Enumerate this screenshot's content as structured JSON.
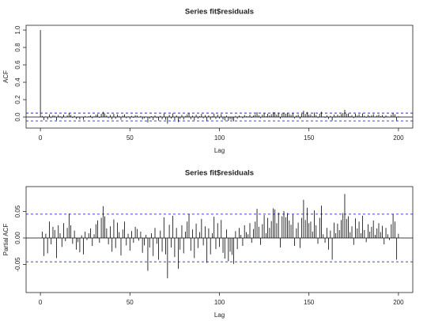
{
  "chart_data": [
    {
      "type": "acf",
      "title": "Series  fit$residuals",
      "xlabel": "Lag",
      "ylabel": "ACF",
      "x": [
        0,
        1,
        2,
        3,
        4,
        5,
        6,
        7,
        8,
        9,
        10,
        11,
        12,
        13,
        14,
        15,
        16,
        17,
        18,
        19,
        20,
        21,
        22,
        23,
        24,
        25,
        26,
        27,
        28,
        29,
        30,
        31,
        32,
        33,
        34,
        35,
        36,
        37,
        38,
        39,
        40,
        41,
        42,
        43,
        44,
        45,
        46,
        47,
        48,
        49,
        50,
        51,
        52,
        53,
        54,
        55,
        56,
        57,
        58,
        59,
        60,
        61,
        62,
        63,
        64,
        65,
        66,
        67,
        68,
        69,
        70,
        71,
        72,
        73,
        74,
        75,
        76,
        77,
        78,
        79,
        80,
        81,
        82,
        83,
        84,
        85,
        86,
        87,
        88,
        89,
        90,
        91,
        92,
        93,
        94,
        95,
        96,
        97,
        98,
        99,
        100,
        101,
        102,
        103,
        104,
        105,
        106,
        107,
        108,
        109,
        110,
        111,
        112,
        113,
        114,
        115,
        116,
        117,
        118,
        119,
        120,
        121,
        122,
        123,
        124,
        125,
        126,
        127,
        128,
        129,
        130,
        131,
        132,
        133,
        134,
        135,
        136,
        137,
        138,
        139,
        140,
        141,
        142,
        143,
        144,
        145,
        146,
        147,
        148,
        149,
        150,
        151,
        152,
        153,
        154,
        155,
        156,
        157,
        158,
        159,
        160,
        161,
        162,
        163,
        164,
        165,
        166,
        167,
        168,
        169,
        170,
        171,
        172,
        173,
        174,
        175,
        176,
        177,
        178,
        179,
        180,
        181,
        182,
        183,
        184,
        185,
        186,
        187,
        188,
        189,
        190,
        191,
        192,
        193,
        194,
        195,
        196,
        197,
        198,
        199,
        200
      ],
      "values": [
        1,
        0.012,
        -0.034,
        0.008,
        -0.029,
        0.031,
        -0.012,
        0.021,
        0.015,
        -0.038,
        0.024,
        0.009,
        -0.017,
        0.028,
        -0.006,
        0.019,
        0.046,
        0.024,
        -0.011,
        0.014,
        -0.022,
        -0.008,
        -0.027,
        0.005,
        -0.031,
        0.012,
        -0.004,
        0.009,
        0.018,
        -0.015,
        0.007,
        0.026,
        0.033,
        -0.009,
        0.038,
        0.06,
        0.041,
        0.018,
        -0.012,
        0.022,
        -0.026,
        0.035,
        -0.019,
        0.029,
        0.011,
        -0.033,
        0.016,
        0.031,
        -0.014,
        0.008,
        -0.024,
        0.013,
        -0.009,
        0.021,
        0.017,
        -0.005,
        0.012,
        -0.028,
        -0.014,
        0.006,
        -0.062,
        -0.018,
        0.009,
        -0.034,
        0.019,
        -0.011,
        -0.041,
        0.014,
        -0.026,
        0.039,
        -0.031,
        -0.076,
        0.025,
        -0.018,
        0.042,
        -0.036,
        0.019,
        -0.058,
        -0.022,
        0.024,
        -0.029,
        0.012,
        0.031,
        0.045,
        -0.024,
        0.016,
        -0.038,
        0.027,
        -0.019,
        0.011,
        0.036,
        -0.014,
        0.022,
        -0.047,
        0.018,
        -0.031,
        0.009,
        0.04,
        -0.021,
        0.028,
        -0.017,
        0.034,
        -0.028,
        -0.039,
        0.016,
        -0.044,
        -0.026,
        -0.032,
        -0.049,
        0.013,
        -0.021,
        0.019,
        0.006,
        -0.015,
        0.024,
        0.011,
        0.007,
        0.028,
        -0.009,
        0.017,
        0.031,
        0.055,
        0.021,
        -0.013,
        0.026,
        0.043,
        0.009,
        0.038,
        0.019,
        0.032,
        0.056,
        0.054,
        0.028,
        0.048,
        -0.018,
        0.041,
        0.051,
        0.039,
        0.047,
        0.033,
        0.025,
        0.044,
        -0.015,
        0.018,
        0.029,
        -0.019,
        0.038,
        0.072,
        0.034,
        0.057,
        0.028,
        0.031,
        0.012,
        0.052,
        0.024,
        -0.011,
        0.038,
        0.061,
        0.007,
        -0.009,
        0.019,
        -0.022,
        0.014,
        -0.041,
        0.029,
        0.009,
        0.027,
        0.015,
        0.034,
        0.047,
        0.083,
        0.036,
        0.041,
        0.011,
        0.022,
        -0.013,
        0.037,
        0.018,
        0.031,
        0.009,
        0.042,
        0.015,
        -0.008,
        0.026,
        0.012,
        0.021,
        0.033,
        0.006,
        0.018,
        0.028,
        0.011,
        0.023,
        -0.012,
        0.019,
        0.007,
        -0.004,
        0.026,
        0.045,
        0.031,
        -0.041,
        0.008
      ],
      "color": "#000000",
      "conf_limit": 0.045,
      "conf_color": "#0000ff",
      "xlim": [
        -8,
        208
      ],
      "xticks": [
        0,
        50,
        100,
        150,
        200
      ],
      "ylim": [
        -0.127,
        1.055
      ],
      "yticks": [
        {
          "value": 0,
          "label": "0.0"
        },
        0.2,
        0.4,
        0.6,
        0.8,
        {
          "value": 1,
          "label": "1.0"
        }
      ]
    },
    {
      "type": "acf",
      "title": "Series  fit$residuals",
      "xlabel": "Lag",
      "ylabel": "Partial ACF",
      "x": [
        1,
        2,
        3,
        4,
        5,
        6,
        7,
        8,
        9,
        10,
        11,
        12,
        13,
        14,
        15,
        16,
        17,
        18,
        19,
        20,
        21,
        22,
        23,
        24,
        25,
        26,
        27,
        28,
        29,
        30,
        31,
        32,
        33,
        34,
        35,
        36,
        37,
        38,
        39,
        40,
        41,
        42,
        43,
        44,
        45,
        46,
        47,
        48,
        49,
        50,
        51,
        52,
        53,
        54,
        55,
        56,
        57,
        58,
        59,
        60,
        61,
        62,
        63,
        64,
        65,
        66,
        67,
        68,
        69,
        70,
        71,
        72,
        73,
        74,
        75,
        76,
        77,
        78,
        79,
        80,
        81,
        82,
        83,
        84,
        85,
        86,
        87,
        88,
        89,
        90,
        91,
        92,
        93,
        94,
        95,
        96,
        97,
        98,
        99,
        100,
        101,
        102,
        103,
        104,
        105,
        106,
        107,
        108,
        109,
        110,
        111,
        112,
        113,
        114,
        115,
        116,
        117,
        118,
        119,
        120,
        121,
        122,
        123,
        124,
        125,
        126,
        127,
        128,
        129,
        130,
        131,
        132,
        133,
        134,
        135,
        136,
        137,
        138,
        139,
        140,
        141,
        142,
        143,
        144,
        145,
        146,
        147,
        148,
        149,
        150,
        151,
        152,
        153,
        154,
        155,
        156,
        157,
        158,
        159,
        160,
        161,
        162,
        163,
        164,
        165,
        166,
        167,
        168,
        169,
        170,
        171,
        172,
        173,
        174,
        175,
        176,
        177,
        178,
        179,
        180,
        181,
        182,
        183,
        184,
        185,
        186,
        187,
        188,
        189,
        190,
        191,
        192,
        193,
        194,
        195,
        196,
        197,
        198,
        199,
        200
      ],
      "values": [
        0.012,
        -0.034,
        0.008,
        -0.029,
        0.031,
        -0.012,
        0.021,
        0.015,
        -0.038,
        0.024,
        0.009,
        -0.017,
        0.028,
        -0.006,
        0.019,
        0.046,
        0.024,
        -0.011,
        0.014,
        -0.022,
        -0.008,
        -0.027,
        0.005,
        -0.031,
        0.012,
        -0.004,
        0.009,
        0.018,
        -0.015,
        0.007,
        0.026,
        0.033,
        -0.009,
        0.038,
        0.06,
        0.041,
        0.018,
        -0.012,
        0.022,
        -0.026,
        0.035,
        -0.019,
        0.029,
        0.011,
        -0.033,
        0.016,
        0.031,
        -0.014,
        0.008,
        -0.024,
        0.013,
        -0.009,
        0.021,
        0.017,
        -0.005,
        0.012,
        -0.028,
        -0.014,
        0.006,
        -0.062,
        -0.018,
        0.009,
        -0.034,
        0.019,
        -0.011,
        -0.041,
        0.014,
        -0.026,
        0.039,
        -0.031,
        -0.076,
        0.025,
        -0.018,
        0.042,
        -0.036,
        0.019,
        -0.058,
        -0.022,
        0.024,
        -0.029,
        0.012,
        0.031,
        0.045,
        -0.024,
        0.016,
        -0.038,
        0.027,
        -0.019,
        0.011,
        0.036,
        -0.014,
        0.022,
        -0.047,
        0.018,
        -0.031,
        0.009,
        0.04,
        -0.021,
        0.028,
        -0.017,
        0.034,
        -0.028,
        -0.039,
        0.016,
        -0.044,
        -0.026,
        -0.032,
        -0.049,
        0.013,
        -0.021,
        0.019,
        0.006,
        -0.015,
        0.024,
        0.011,
        0.007,
        0.028,
        -0.009,
        0.017,
        0.031,
        0.055,
        0.021,
        -0.013,
        0.026,
        0.043,
        0.009,
        0.038,
        0.019,
        0.032,
        0.056,
        0.054,
        0.028,
        0.048,
        -0.018,
        0.041,
        0.051,
        0.039,
        0.047,
        0.033,
        0.025,
        0.044,
        -0.015,
        0.018,
        0.029,
        -0.019,
        0.038,
        0.072,
        0.034,
        0.057,
        0.028,
        0.031,
        0.012,
        0.052,
        0.024,
        -0.011,
        0.038,
        0.061,
        0.007,
        -0.009,
        0.019,
        -0.022,
        0.014,
        -0.041,
        0.029,
        0.009,
        0.027,
        0.015,
        0.034,
        0.047,
        0.083,
        0.036,
        0.041,
        0.011,
        0.022,
        -0.013,
        0.037,
        0.018,
        0.031,
        0.009,
        0.042,
        0.015,
        -0.008,
        0.026,
        0.012,
        0.021,
        0.033,
        0.006,
        0.018,
        0.028,
        0.011,
        0.023,
        -0.012,
        0.019,
        0.007,
        -0.004,
        0.026,
        0.045,
        0.031,
        -0.041,
        0.008
      ],
      "color": "#000000",
      "conf_limit": 0.045,
      "conf_color": "#0000ff",
      "xlim": [
        -8,
        208
      ],
      "xticks": [
        0,
        50,
        100,
        150,
        200
      ],
      "ylim": [
        -0.103,
        0.097
      ],
      "yticks": [
        -0.05,
        {
          "value": 0,
          "label": "0.00"
        },
        0.05
      ]
    }
  ]
}
